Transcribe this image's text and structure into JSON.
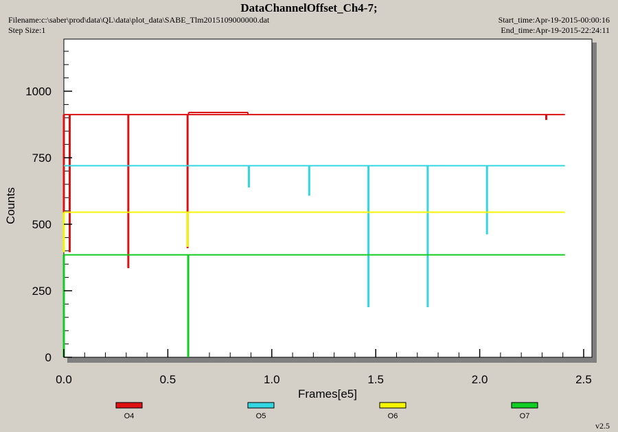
{
  "header": {
    "title": "DataChannelOffset_Ch4-7;",
    "filename": "Filename:c:\\saber\\prod\\data\\QL\\data\\plot_data\\SABE_Tlm2015109000000.dat",
    "step_size": "Step Size:1",
    "start_time": "Start_time:Apr-19-2015-00:00:16",
    "end_time": "End_time:Apr-19-2015-22:24:11"
  },
  "footer": {
    "version": "v2.5"
  },
  "chart_data": {
    "type": "line",
    "title": "DataChannelOffset_Ch4-7;",
    "xlabel": "Frames[e5]",
    "ylabel": "Counts",
    "xlim": [
      0,
      2.5
    ],
    "ylim": [
      0,
      1150
    ],
    "x_ticks": [
      "0.0",
      "0.5",
      "1.0",
      "1.5",
      "2.0",
      "2.5"
    ],
    "y_ticks": [
      "0",
      "250",
      "500",
      "750",
      "1000"
    ],
    "grid": false,
    "legend_placement": "bottom",
    "series": [
      {
        "name": "O4",
        "color": "#dd1111",
        "base": 912,
        "x_end": 2.41,
        "segments": [
          {
            "x0": 0.6,
            "x1": 0.885,
            "y": 920
          }
        ],
        "spikes": [
          {
            "x": 0.0,
            "y": 545
          },
          {
            "x": 0.028,
            "y": 395
          },
          {
            "x": 0.31,
            "y": 335
          },
          {
            "x": 0.595,
            "y": 410
          },
          {
            "x": 2.32,
            "y": 892
          }
        ]
      },
      {
        "name": "O5",
        "color": "#33d6e0",
        "base": 720,
        "x_end": 2.41,
        "segments": [],
        "spikes": [
          {
            "x": 0.89,
            "y": 638
          },
          {
            "x": 1.18,
            "y": 607
          },
          {
            "x": 1.465,
            "y": 188
          },
          {
            "x": 1.75,
            "y": 188
          },
          {
            "x": 2.035,
            "y": 462
          }
        ]
      },
      {
        "name": "O6",
        "color": "#f5f500",
        "base": 545,
        "x_end": 2.41,
        "segments": [],
        "spikes": [
          {
            "x": 0.0,
            "y": 395
          },
          {
            "x": 0.595,
            "y": 415
          }
        ]
      },
      {
        "name": "O7",
        "color": "#11cc22",
        "base": 385,
        "x_end": 2.41,
        "segments": [],
        "spikes": [
          {
            "x": 0.0,
            "y": 0
          },
          {
            "x": 0.598,
            "y": 0
          }
        ]
      }
    ]
  }
}
